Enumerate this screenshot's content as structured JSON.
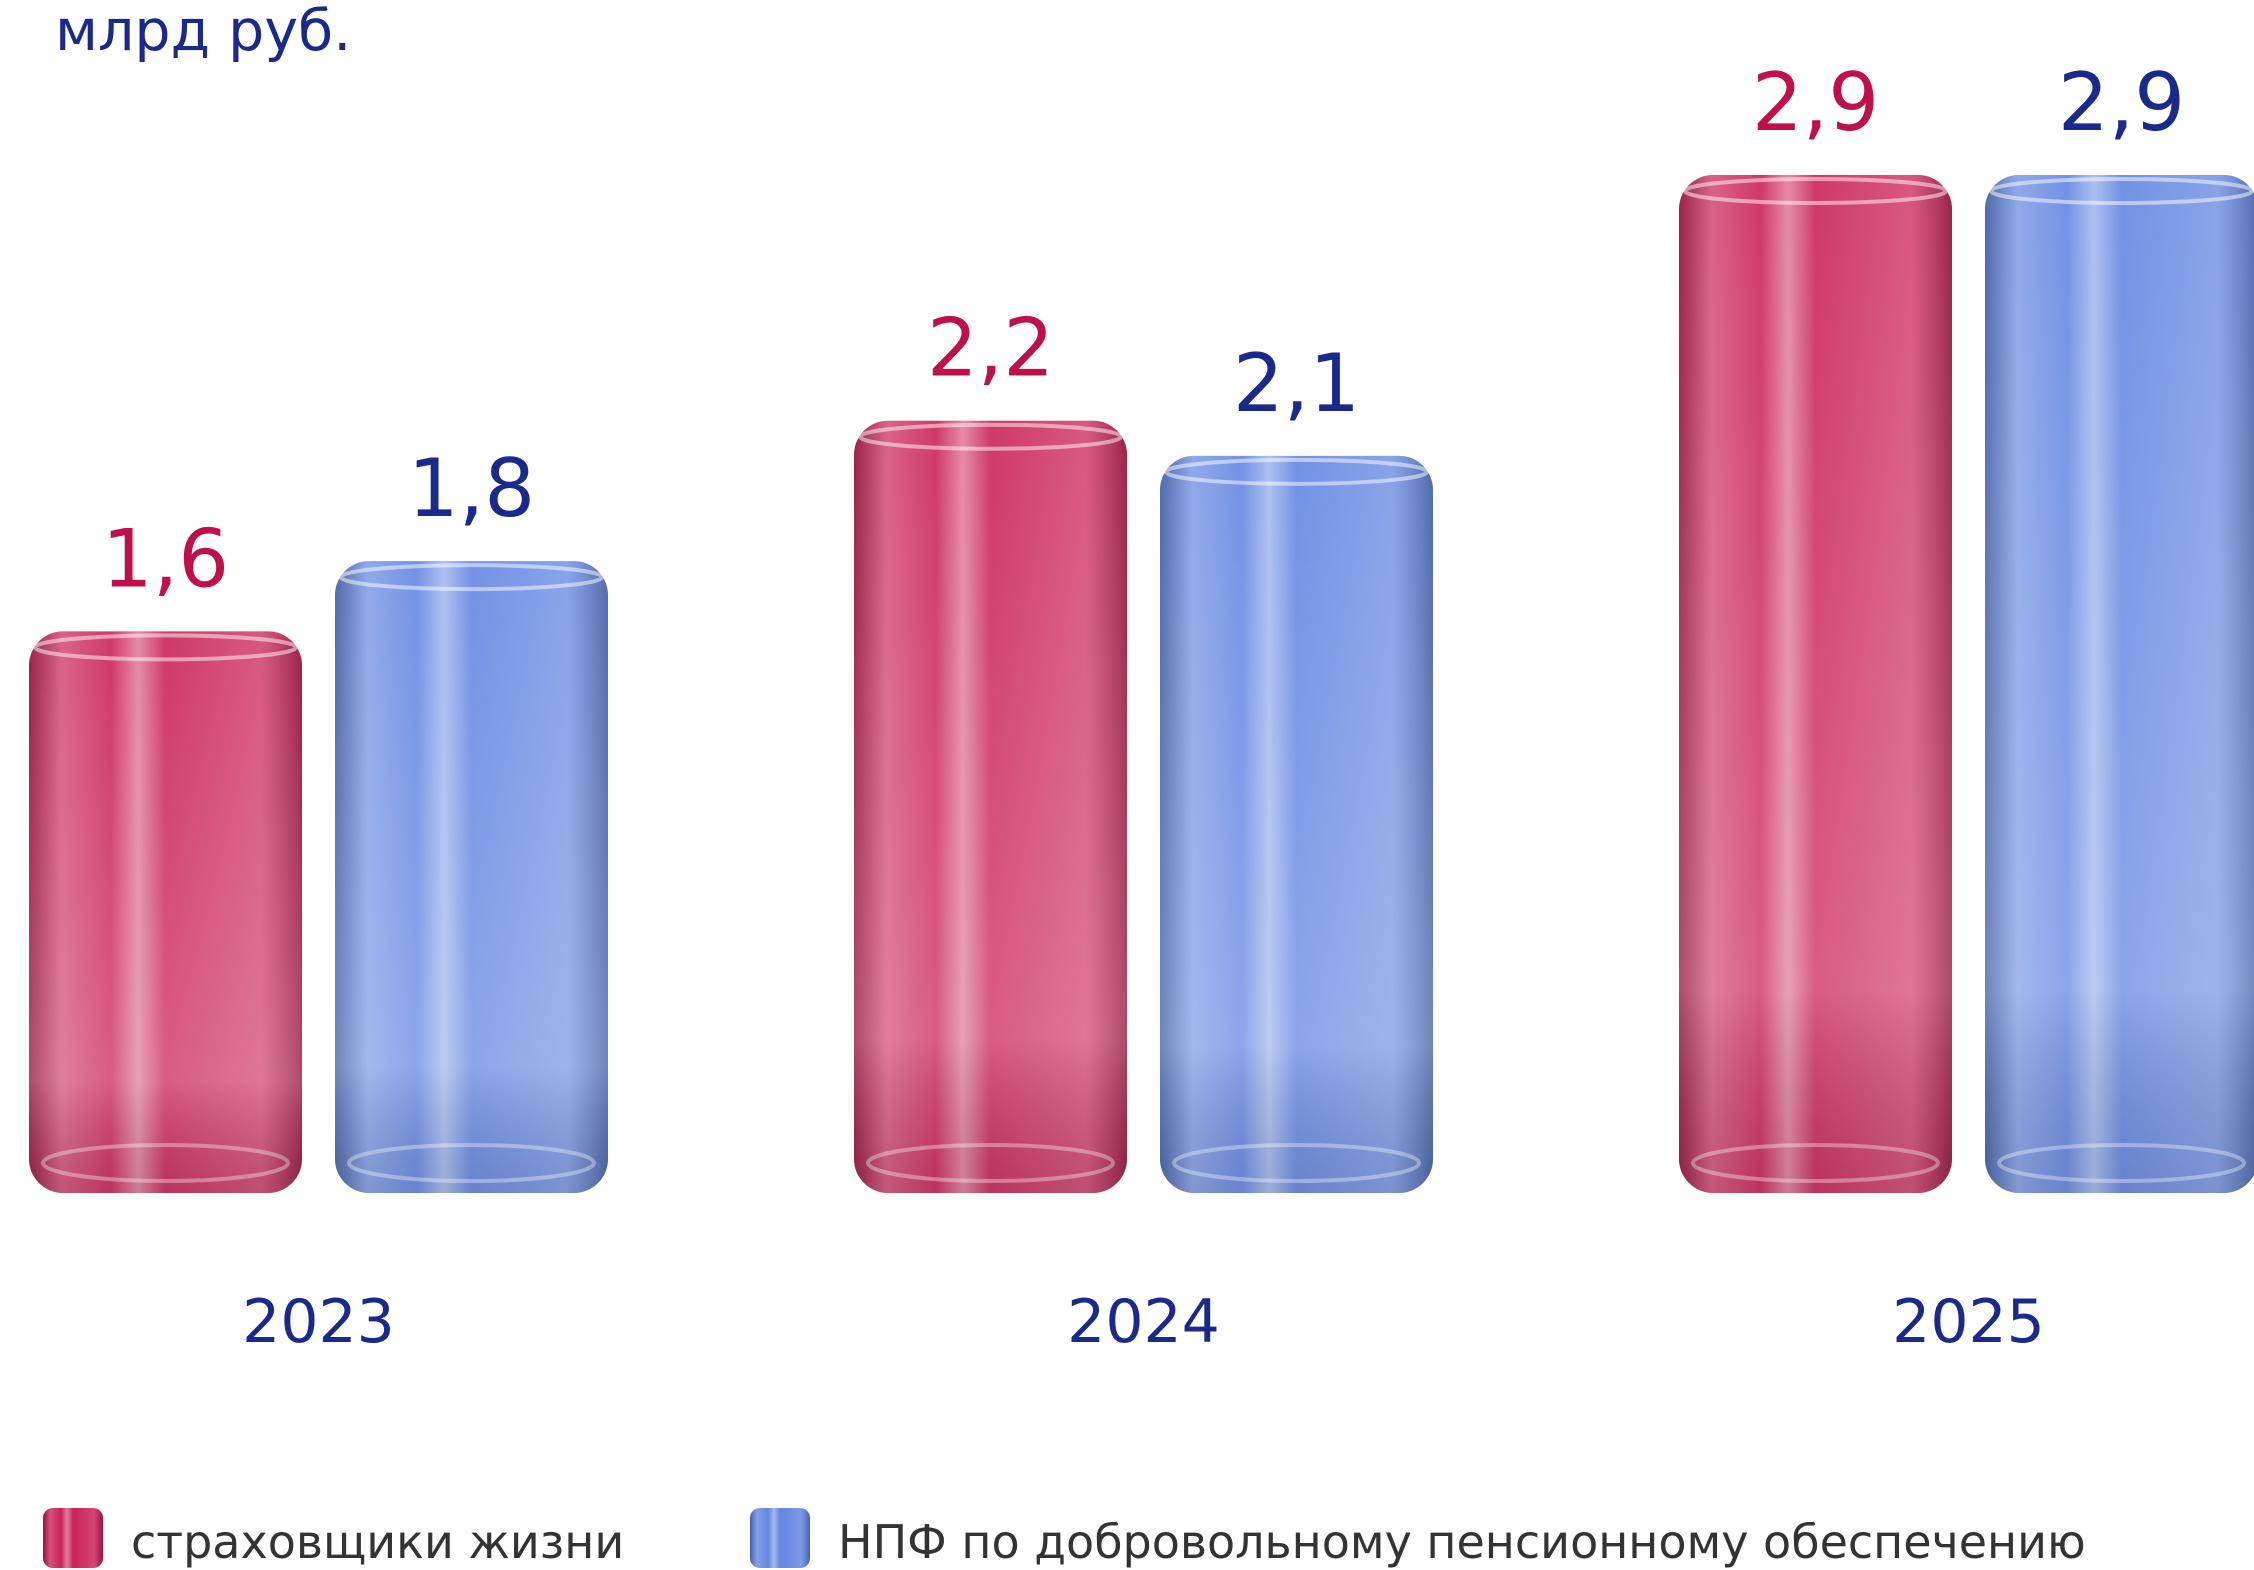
{
  "chart_data": {
    "type": "bar",
    "subtitle": "млрд руб.",
    "categories": [
      "2023",
      "2024",
      "2025"
    ],
    "series": [
      {
        "name": "страховщики жизни",
        "color": "#c8174f",
        "values": [
          1.6,
          2.2,
          2.9
        ],
        "value_labels": [
          "1,6",
          "2,2",
          "2,9"
        ]
      },
      {
        "name": "НПФ по добровольному пенсионному обеспечению",
        "color": "#5b80e0",
        "values": [
          1.8,
          2.1,
          2.9
        ],
        "value_labels": [
          "1,8",
          "2,1",
          "2,9"
        ]
      }
    ]
  }
}
